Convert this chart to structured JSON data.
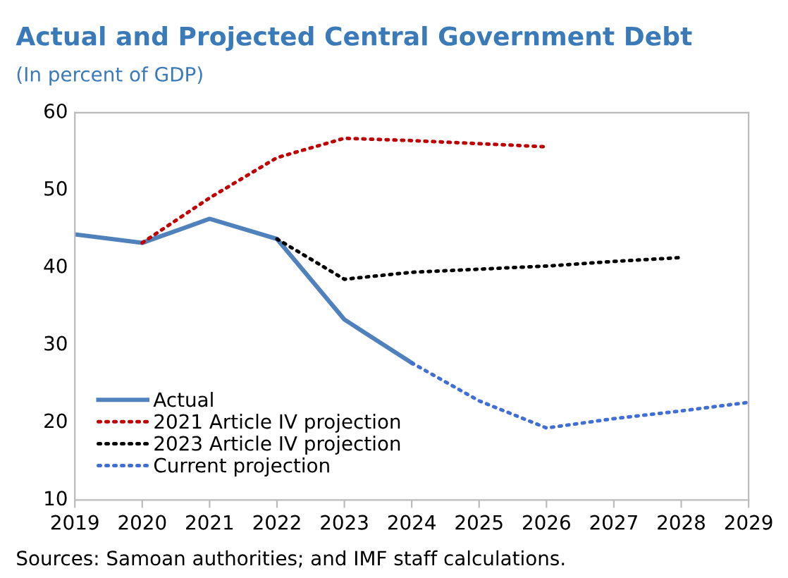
{
  "chart_data": {
    "type": "line",
    "title": "Actual and Projected Central Government Debt",
    "subtitle": "(In percent of GDP)",
    "annotations": [
      "Sources: Samoan authorities; and IMF staff calculations."
    ],
    "series": [
      {
        "name": "Actual",
        "color": "#4f81bd",
        "line_style": "solid",
        "x": [
          2019,
          2020,
          2021,
          2022,
          2023,
          2024
        ],
        "values": [
          44.3,
          43.2,
          46.3,
          43.7,
          33.3,
          27.7
        ]
      },
      {
        "name": "2021 Article IV projection",
        "color": "#c00000",
        "line_style": "dotted",
        "x": [
          2020,
          2021,
          2022,
          2023,
          2024,
          2025,
          2026
        ],
        "values": [
          43.2,
          49.0,
          54.2,
          56.7,
          56.4,
          56.0,
          55.6
        ]
      },
      {
        "name": "2023 Article IV projection",
        "color": "#000000",
        "line_style": "dotted",
        "x": [
          2022,
          2023,
          2024,
          2025,
          2026,
          2027,
          2028
        ],
        "values": [
          43.7,
          38.5,
          39.4,
          39.8,
          40.2,
          40.8,
          41.3
        ]
      },
      {
        "name": "Current projection",
        "color": "#3f6fd4",
        "line_style": "dotted",
        "x": [
          2024,
          2025,
          2026,
          2027,
          2028,
          2029
        ],
        "values": [
          27.7,
          22.8,
          19.3,
          20.5,
          21.5,
          22.6
        ]
      }
    ],
    "xlim": [
      2019,
      2029
    ],
    "xticks": [
      2019,
      2020,
      2021,
      2022,
      2023,
      2024,
      2025,
      2026,
      2027,
      2028,
      2029
    ],
    "ylim": [
      10,
      60
    ],
    "yticks": [
      10,
      20,
      30,
      40,
      50,
      60
    ],
    "grid": false,
    "legend": "bottom left",
    "marker": "none"
  }
}
